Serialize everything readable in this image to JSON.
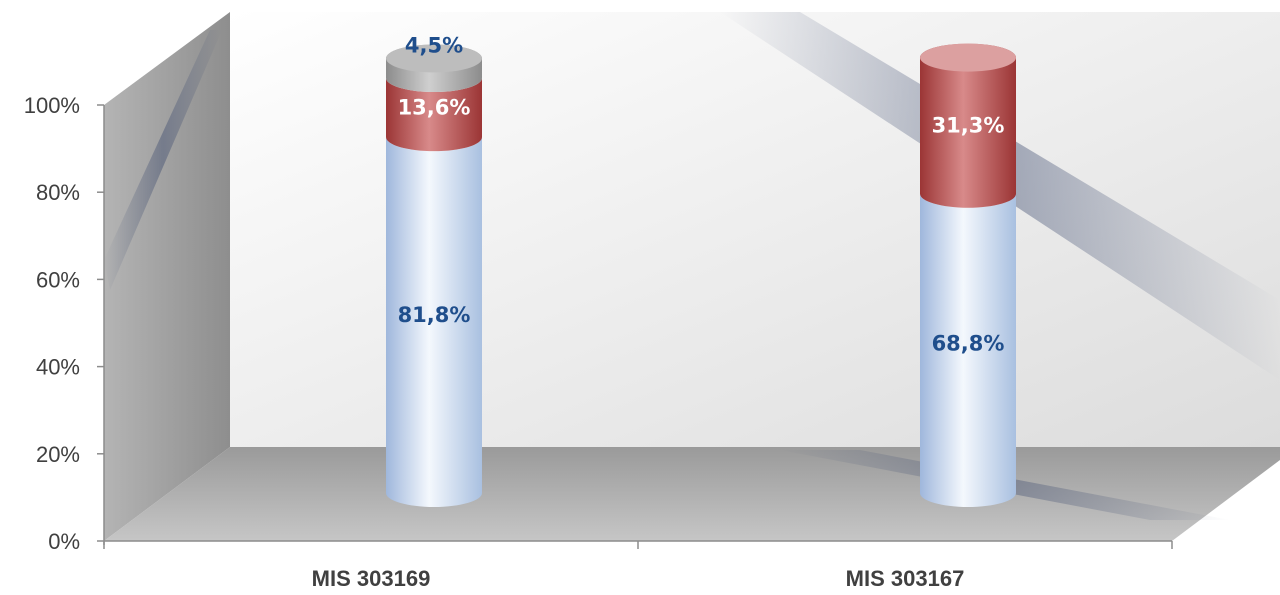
{
  "chart_data": {
    "type": "bar",
    "stacked": true,
    "style": "3d-cylinder",
    "categories": [
      "MIS 303169",
      "MIS 303167"
    ],
    "series": [
      {
        "values": [
          81.8,
          68.8
        ],
        "labels": [
          "81,8%",
          "68,8%"
        ],
        "color": "#b9cde8",
        "label_color": "#1f4e8c"
      },
      {
        "values": [
          13.6,
          31.3
        ],
        "labels": [
          "13,6%",
          "31,3%"
        ],
        "color": "#b04545",
        "label_color": "#ffffff"
      },
      {
        "values": [
          4.5,
          0
        ],
        "labels": [
          "4,5%",
          ""
        ],
        "color": "#a6a6a6",
        "label_color": "#1f4e8c"
      }
    ],
    "yticks": [
      "0%",
      "20%",
      "40%",
      "60%",
      "80%",
      "100%"
    ],
    "ylim": [
      0,
      100
    ],
    "grid": false,
    "legend": "none"
  }
}
